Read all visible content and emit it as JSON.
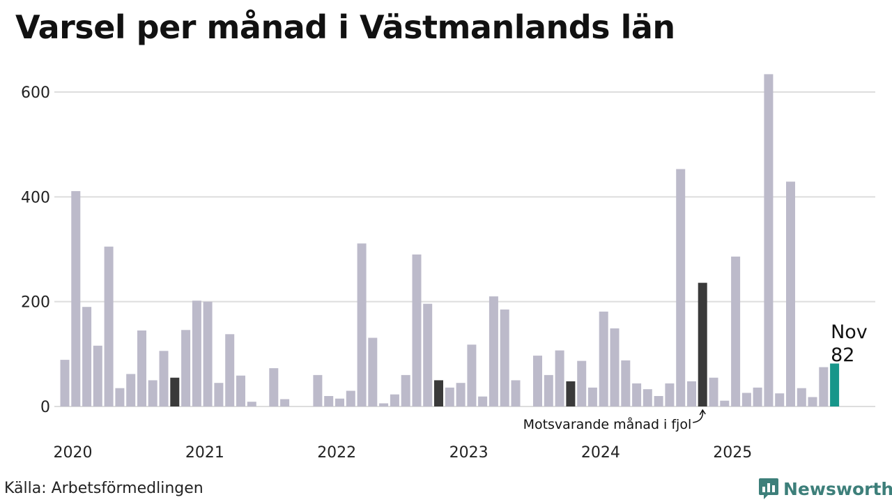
{
  "colors": {
    "bar": "#bcbaca",
    "previous_year": "#3a3a3a",
    "current": "#17968a",
    "grid": "#dddddd",
    "brand": "#3d7f7a"
  },
  "chart_data": {
    "type": "bar",
    "title": "Varsel per månad i Västmanlands län",
    "xlabel": "",
    "ylabel": "",
    "ylim": [
      0,
      650
    ],
    "yticks": [
      0,
      200,
      400,
      600
    ],
    "year_labels": [
      "2020",
      "2021",
      "2022",
      "2023",
      "2024",
      "2025"
    ],
    "categories": [
      "2020-01",
      "2020-02",
      "2020-03",
      "2020-04",
      "2020-05",
      "2020-06",
      "2020-07",
      "2020-08",
      "2020-09",
      "2020-10",
      "2020-11",
      "2020-12",
      "2021-01",
      "2021-02",
      "2021-03",
      "2021-04",
      "2021-05",
      "2021-06",
      "2021-07",
      "2021-08",
      "2021-09",
      "2021-10",
      "2021-11",
      "2021-12",
      "2022-01",
      "2022-02",
      "2022-03",
      "2022-04",
      "2022-05",
      "2022-06",
      "2022-07",
      "2022-08",
      "2022-09",
      "2022-10",
      "2022-11",
      "2022-12",
      "2023-01",
      "2023-02",
      "2023-03",
      "2023-04",
      "2023-05",
      "2023-06",
      "2023-07",
      "2023-08",
      "2023-09",
      "2023-10",
      "2023-11",
      "2023-12",
      "2024-01",
      "2024-02",
      "2024-03",
      "2024-04",
      "2024-05",
      "2024-06",
      "2024-07",
      "2024-08",
      "2024-09",
      "2024-10",
      "2024-11",
      "2024-12",
      "2025-01",
      "2025-02",
      "2025-03",
      "2025-04",
      "2025-05",
      "2025-06",
      "2025-07",
      "2025-08",
      "2025-09",
      "2025-10",
      "2025-11"
    ],
    "values": [
      89,
      411,
      190,
      116,
      305,
      35,
      62,
      145,
      50,
      106,
      55,
      146,
      202,
      200,
      45,
      138,
      59,
      9,
      0,
      73,
      14,
      0,
      0,
      60,
      20,
      15,
      30,
      311,
      131,
      6,
      23,
      60,
      290,
      196,
      50,
      36,
      45,
      118,
      19,
      210,
      185,
      50,
      0,
      97,
      60,
      107,
      48,
      87,
      36,
      181,
      149,
      88,
      44,
      33,
      20,
      44,
      453,
      48,
      236,
      55,
      11,
      286,
      26,
      36,
      634,
      25,
      429,
      35,
      18,
      75,
      82
    ],
    "previous_year_indices": [
      10,
      34,
      46,
      58
    ],
    "current_index": 70,
    "highlight": {
      "month": "Nov",
      "value": "82"
    },
    "annotation": "Motsvarande månad i fjol"
  },
  "source": "Källa: Arbetsförmedlingen",
  "brand": {
    "name": "Newsworthy",
    "icon": "chart-bubble-icon"
  }
}
